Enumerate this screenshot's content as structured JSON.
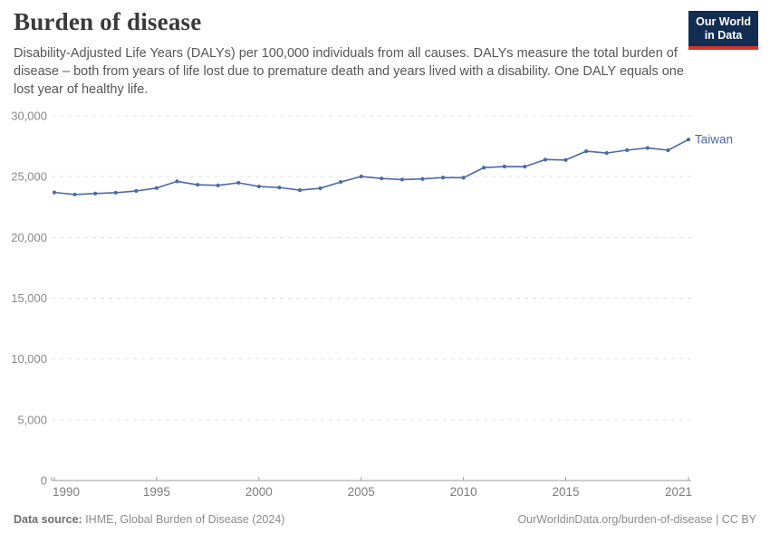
{
  "header": {
    "title": "Burden of disease",
    "subtitle": "Disability-Adjusted Life Years (DALYs) per 100,000 individuals from all causes. DALYs measure the total burden of disease – both from years of life lost due to premature death and years lived with a disability. One DALY equals one lost year of healthy life.",
    "logo": {
      "line1": "Our World",
      "line2": "in Data",
      "bg_color": "#132d52",
      "accent_color": "#d0342c"
    }
  },
  "chart_data": {
    "type": "line",
    "title": "Burden of disease",
    "xlabel": "",
    "ylabel": "DALYs per 100,000 individuals",
    "xlim": [
      1990,
      2021
    ],
    "ylim": [
      0,
      30000
    ],
    "grid": "horizontal-dashed",
    "legend": "end-of-line-label",
    "x": [
      1990,
      1991,
      1992,
      1993,
      1994,
      1995,
      1996,
      1997,
      1998,
      1999,
      2000,
      2001,
      2002,
      2003,
      2004,
      2005,
      2006,
      2007,
      2008,
      2009,
      2010,
      2011,
      2012,
      2013,
      2014,
      2015,
      2016,
      2017,
      2018,
      2019,
      2020,
      2021
    ],
    "series": [
      {
        "name": "Taiwan",
        "color": "#4b69a5",
        "values": [
          23700,
          23530,
          23610,
          23680,
          23820,
          24060,
          24610,
          24330,
          24280,
          24490,
          24190,
          24100,
          23890,
          24040,
          24560,
          25010,
          24850,
          24760,
          24810,
          24920,
          24910,
          25740,
          25830,
          25820,
          26400,
          26370,
          27090,
          26940,
          27180,
          27360,
          27170,
          28050
        ]
      }
    ],
    "yticks": [
      {
        "value": 0,
        "label": "0"
      },
      {
        "value": 5000,
        "label": "5,000"
      },
      {
        "value": 10000,
        "label": "10,000"
      },
      {
        "value": 15000,
        "label": "15,000"
      },
      {
        "value": 20000,
        "label": "20,000"
      },
      {
        "value": 25000,
        "label": "25,000"
      },
      {
        "value": 30000,
        "label": "30,000"
      }
    ],
    "xticks": [
      {
        "value": 1990,
        "label": "1990"
      },
      {
        "value": 1995,
        "label": "1995"
      },
      {
        "value": 2000,
        "label": "2000"
      },
      {
        "value": 2005,
        "label": "2005"
      },
      {
        "value": 2010,
        "label": "2010"
      },
      {
        "value": 2015,
        "label": "2015"
      },
      {
        "value": 2021,
        "label": "2021"
      }
    ]
  },
  "footer": {
    "source_label": "Data source:",
    "source_value": " IHME, Global Burden of Disease (2024)",
    "link_text": "OurWorldinData.org/burden-of-disease | CC BY"
  }
}
